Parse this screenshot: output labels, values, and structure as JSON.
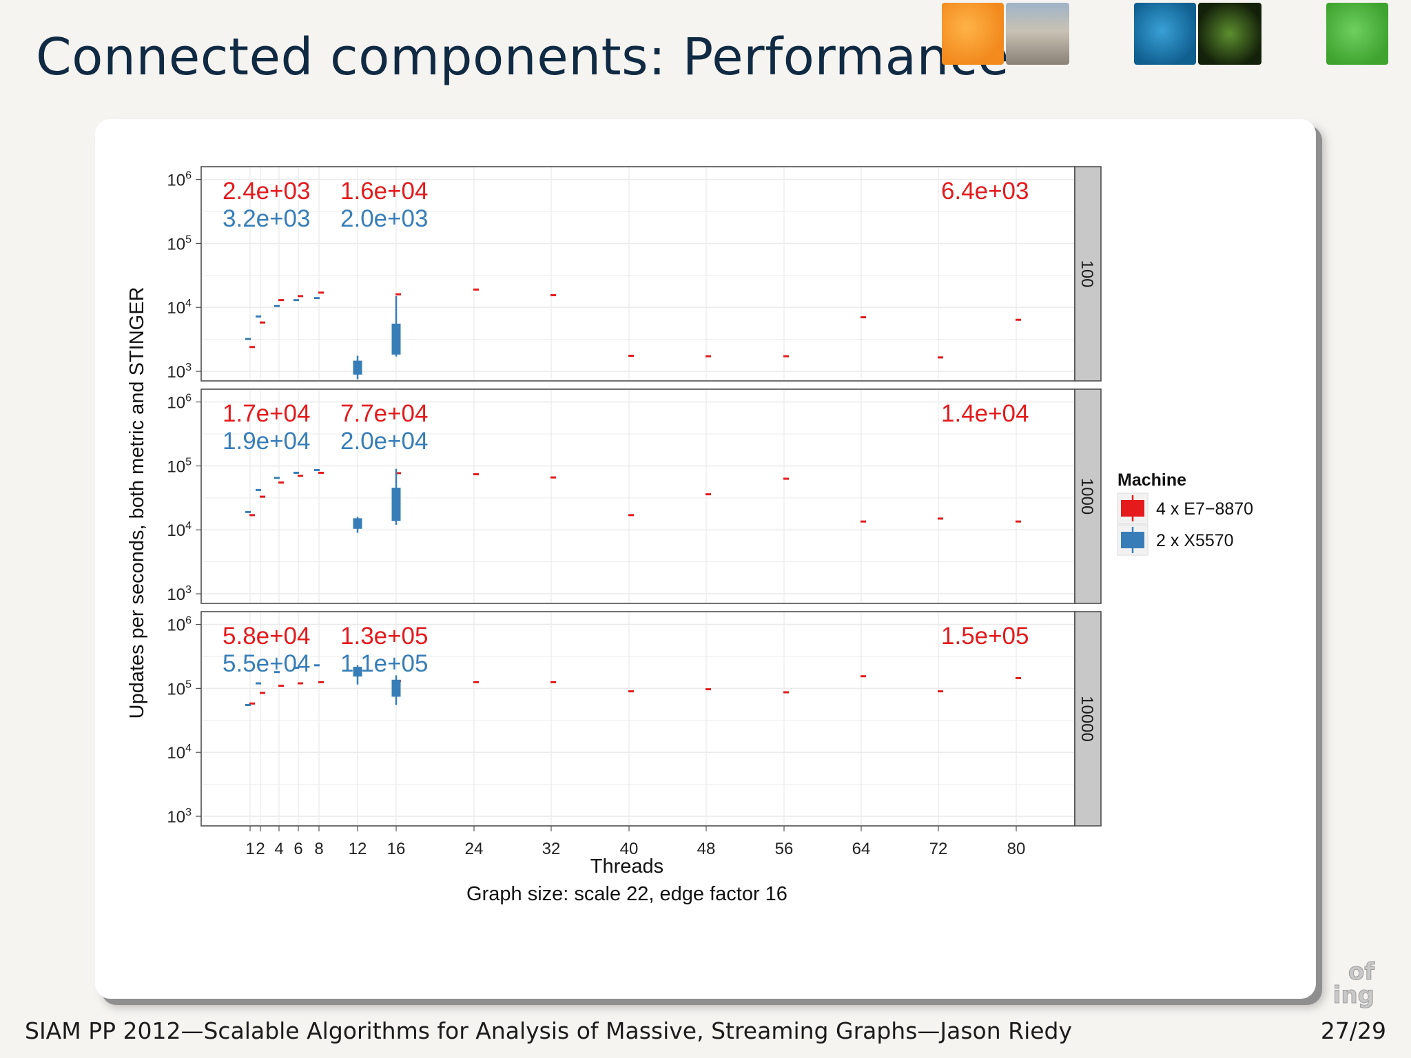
{
  "slide": {
    "title": "Connected components: Performance",
    "footer": "SIAM PP 2012—Scalable Algorithms for Analysis of Massive, Streaming Graphs—Jason Riedy",
    "page": "27/29"
  },
  "corner_mark": [
    "of",
    "ing"
  ],
  "colors": {
    "series_red": "#e41a1c",
    "series_blue": "#377eb8",
    "strip_bg": "#c8c8c8",
    "grid": "#ebebeb",
    "title_text": "#102a43"
  },
  "chart_data": {
    "type": "boxplot",
    "xlabel": "Threads",
    "caption": "Graph size: scale 22, edge factor 16",
    "ylabel": "Updates per seconds, both metric and STINGER",
    "y_scale": "log10",
    "ylim": [
      500,
      5000000
    ],
    "y_ticks": [
      1000,
      10000,
      100000,
      1000000
    ],
    "y_tick_labels": [
      [
        "10",
        "3"
      ],
      [
        "10",
        "4"
      ],
      [
        "10",
        "5"
      ],
      [
        "10",
        "6"
      ]
    ],
    "x_tick_labels": [
      "1",
      "2",
      "4",
      "6",
      "8",
      "12",
      "16",
      "24",
      "32",
      "40",
      "48",
      "56",
      "64",
      "72",
      "80"
    ],
    "grid": true,
    "legend": {
      "title": "Machine",
      "position": "right",
      "entries": [
        {
          "name": "4 x E7−8870",
          "color": "#e41a1c"
        },
        {
          "name": "2 x X5570",
          "color": "#377eb8"
        }
      ]
    },
    "panels": [
      {
        "strip": "100",
        "annotations": {
          "red": [
            "2.4e+03",
            "1.6e+04",
            "6.4e+03"
          ],
          "blue": [
            "3.2e+03",
            "2.0e+03"
          ]
        },
        "series": [
          {
            "name": "4 x E7−8870",
            "points": [
              [
                1,
                2400
              ],
              [
                2,
                5800
              ],
              [
                4,
                13000
              ],
              [
                6,
                15000
              ],
              [
                8,
                17000
              ],
              [
                16,
                16000
              ],
              [
                24,
                19000
              ],
              [
                32,
                15500
              ],
              [
                40,
                1750
              ],
              [
                48,
                1720
              ],
              [
                56,
                1720
              ],
              [
                64,
                7000
              ],
              [
                72,
                1650
              ],
              [
                80,
                6400
              ]
            ]
          },
          {
            "name": "2 x X5570",
            "points": [
              [
                1,
                3200
              ],
              [
                2,
                7200
              ],
              [
                4,
                10500
              ],
              [
                6,
                13000
              ],
              [
                8,
                14000
              ]
            ],
            "boxes": [
              {
                "x": 12,
                "min": 750,
                "q1": 900,
                "q3": 1450,
                "max": 1750
              },
              {
                "x": 16,
                "min": 1700,
                "q1": 1850,
                "q3": 5500,
                "max": 15000
              }
            ]
          }
        ]
      },
      {
        "strip": "1000",
        "annotations": {
          "red": [
            "1.7e+04",
            "7.7e+04",
            "1.4e+04"
          ],
          "blue": [
            "1.9e+04",
            "2.0e+04"
          ]
        },
        "series": [
          {
            "name": "4 x E7−8870",
            "points": [
              [
                1,
                17000
              ],
              [
                2,
                33000
              ],
              [
                4,
                55000
              ],
              [
                6,
                70000
              ],
              [
                8,
                78000
              ],
              [
                16,
                77000
              ],
              [
                24,
                74000
              ],
              [
                32,
                66000
              ],
              [
                40,
                17000
              ],
              [
                48,
                36000
              ],
              [
                56,
                63000
              ],
              [
                64,
                13500
              ],
              [
                72,
                15000
              ],
              [
                80,
                13500
              ]
            ]
          },
          {
            "name": "2 x X5570",
            "points": [
              [
                1,
                19000
              ],
              [
                2,
                42000
              ],
              [
                4,
                65000
              ],
              [
                6,
                78000
              ],
              [
                8,
                86000
              ]
            ],
            "boxes": [
              {
                "x": 12,
                "min": 9000,
                "q1": 10500,
                "q3": 15000,
                "max": 16000
              },
              {
                "x": 16,
                "min": 12000,
                "q1": 14000,
                "q3": 45000,
                "max": 90000
              }
            ]
          }
        ]
      },
      {
        "strip": "10000",
        "annotations": {
          "red": [
            "5.8e+04",
            "1.3e+05",
            "1.5e+05"
          ],
          "blue": [
            "5.5e+04",
            "1.1e+05"
          ]
        },
        "series": [
          {
            "name": "4 x E7−8870",
            "points": [
              [
                1,
                58000
              ],
              [
                2,
                85000
              ],
              [
                4,
                110000
              ],
              [
                6,
                120000
              ],
              [
                8,
                125000
              ],
              [
                16,
                130000
              ],
              [
                24,
                125000
              ],
              [
                32,
                125000
              ],
              [
                40,
                90000
              ],
              [
                48,
                97000
              ],
              [
                56,
                87000
              ],
              [
                64,
                155000
              ],
              [
                72,
                90000
              ],
              [
                80,
                145000
              ]
            ]
          },
          {
            "name": "2 x X5570",
            "points": [
              [
                1,
                55000
              ],
              [
                2,
                120000
              ],
              [
                4,
                180000
              ],
              [
                6,
                210000
              ],
              [
                8,
                230000
              ]
            ],
            "boxes": [
              {
                "x": 12,
                "min": 115000,
                "q1": 155000,
                "q3": 215000,
                "max": 230000
              },
              {
                "x": 16,
                "min": 55000,
                "q1": 75000,
                "q3": 135000,
                "max": 160000
              }
            ]
          }
        ]
      }
    ]
  }
}
